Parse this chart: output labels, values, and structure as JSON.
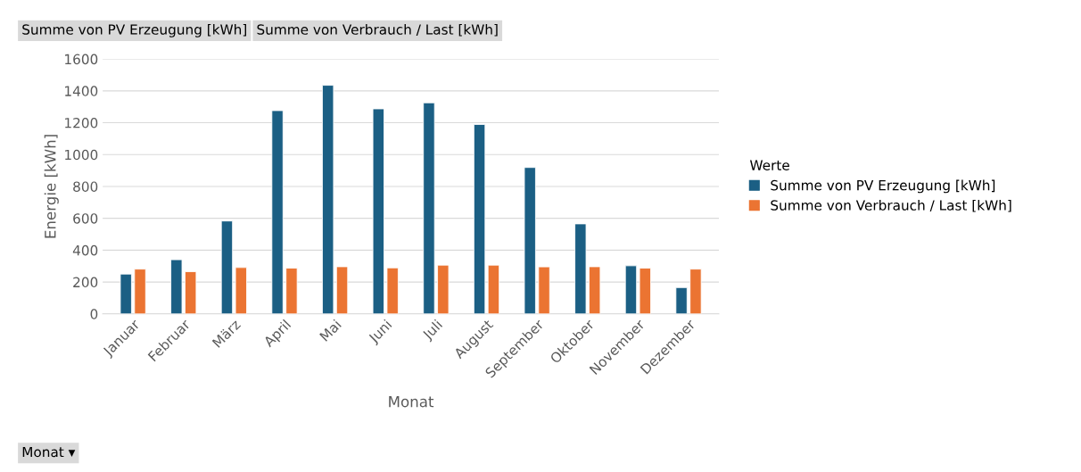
{
  "chart_data": {
    "type": "bar",
    "xlabel": "Monat",
    "ylabel": "Energie [kWh]",
    "legend_title": "Werte",
    "categories": [
      "Januar",
      "Februar",
      "März",
      "April",
      "Mai",
      "Juni",
      "Juli",
      "August",
      "September",
      "Oktober",
      "November",
      "Dezember"
    ],
    "series": [
      {
        "name": "Summe von PV Erzeugung [kWh]",
        "color": "#1b5f84",
        "values": [
          250,
          340,
          583,
          1276,
          1435,
          1287,
          1325,
          1189,
          919,
          565,
          302,
          165
        ]
      },
      {
        "name": "Summe von Verbrauch / Last [kWh]",
        "color": "#eb7432",
        "values": [
          281,
          265,
          291,
          287,
          296,
          289,
          306,
          306,
          295,
          296,
          287,
          281
        ]
      }
    ],
    "ylim": [
      0,
      1600
    ],
    "yticks": [
      0,
      200,
      400,
      600,
      800,
      1000,
      1200,
      1400,
      1600
    ],
    "grid": "y",
    "legend": "right",
    "annotations": [
      "Summe von PV Erzeugung [kWh]",
      "Summe von Verbrauch / Last [kWh]",
      "Monat ▾"
    ]
  }
}
